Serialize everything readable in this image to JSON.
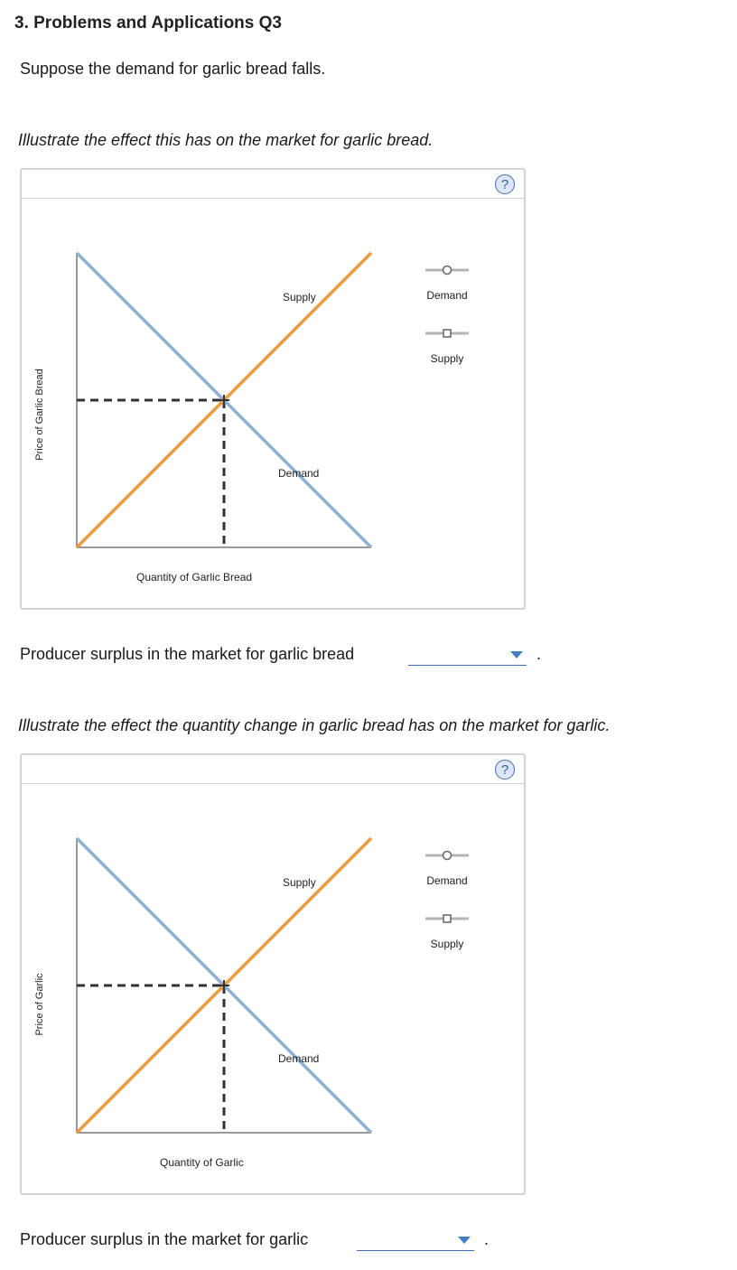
{
  "heading": "3. Problems and Applications Q3",
  "intro": "Suppose the demand for garlic bread falls.",
  "panels": [
    {
      "instruction": "Illustrate the effect this has on the market for garlic bread.",
      "help_symbol": "?",
      "y_axis_label": "Price of Garlic Bread",
      "x_axis_label": "Quantity of Garlic Bread",
      "supply_label": "Supply",
      "demand_label": "Demand",
      "palette": [
        {
          "label": "Demand",
          "marker": "circle"
        },
        {
          "label": "Supply",
          "marker": "square"
        }
      ],
      "question": "Producer surplus in the market for garlic bread",
      "dropdown_value": "",
      "period": "."
    },
    {
      "instruction": "Illustrate the effect the quantity change in garlic bread has on the market for garlic.",
      "help_symbol": "?",
      "y_axis_label": "Price of Garlic",
      "x_axis_label": "Quantity of Garlic",
      "supply_label": "Supply",
      "demand_label": "Demand",
      "palette": [
        {
          "label": "Demand",
          "marker": "circle"
        },
        {
          "label": "Supply",
          "marker": "square"
        }
      ],
      "question": "Producer surplus in the market for garlic",
      "dropdown_value": "",
      "period": "."
    }
  ],
  "colors": {
    "demand": "#8fb2d1",
    "supply": "#ee9a3e",
    "axis": "#9a9a9a",
    "dashed": "#333333",
    "accent": "#3d6fb4"
  }
}
